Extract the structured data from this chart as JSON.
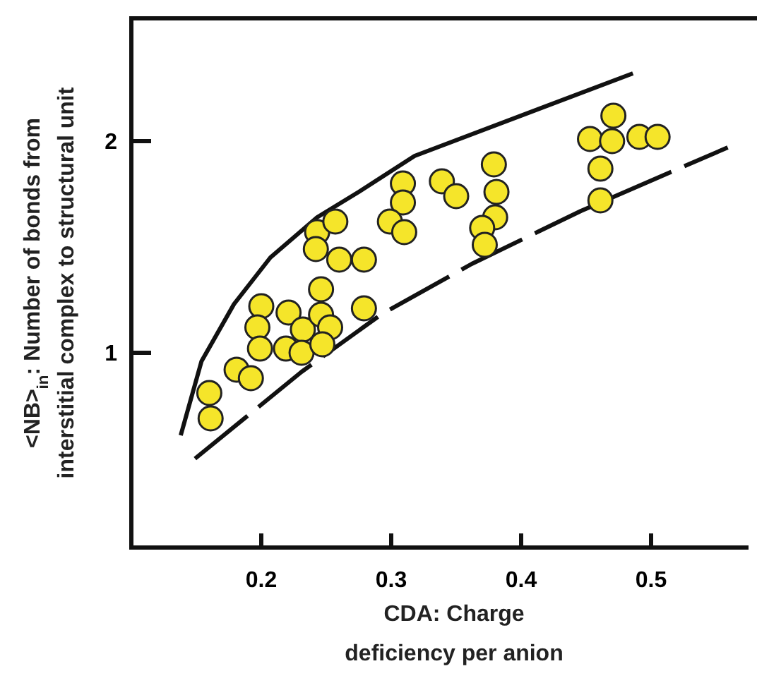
{
  "chart_data": {
    "type": "scatter",
    "xlabel": "CDA: Charge deficiency per anion",
    "ylabel": "<NB>$_{in}$: Number of bonds from interstitial complex to structural unit",
    "xlim": [
      0.1,
      0.575
    ],
    "ylim": [
      0.08,
      2.58
    ],
    "xticks": [
      0.2,
      0.3,
      0.4,
      0.5
    ],
    "yticks": [
      1,
      2
    ],
    "grid": false,
    "series": [
      {
        "color": "#f5e52a",
        "marker": "circle",
        "x": [
          0.16,
          0.161,
          0.181,
          0.192,
          0.2,
          0.197,
          0.199,
          0.221,
          0.219,
          0.232,
          0.231,
          0.246,
          0.246,
          0.253,
          0.247,
          0.243,
          0.242,
          0.257,
          0.26,
          0.279,
          0.279,
          0.309,
          0.309,
          0.299,
          0.31,
          0.339,
          0.35,
          0.379,
          0.381,
          0.38,
          0.37,
          0.372,
          0.471,
          0.453,
          0.47,
          0.491,
          0.505,
          0.461,
          0.461
        ],
        "values": [
          0.81,
          0.69,
          0.92,
          0.88,
          1.22,
          1.12,
          1.02,
          1.19,
          1.02,
          1.11,
          1.0,
          1.3,
          1.18,
          1.12,
          1.04,
          1.57,
          1.49,
          1.62,
          1.44,
          1.44,
          1.21,
          1.8,
          1.71,
          1.62,
          1.57,
          1.81,
          1.74,
          1.89,
          1.76,
          1.64,
          1.59,
          1.51,
          2.12,
          2.01,
          2.0,
          2.02,
          2.02,
          1.87,
          1.72
        ]
      },
      {
        "type": "line",
        "color": "#111111",
        "line_style": "solid",
        "x": [
          0.138,
          0.154,
          0.179,
          0.207,
          0.243,
          0.275,
          0.318,
          0.486
        ],
        "values": [
          0.61,
          0.96,
          1.23,
          1.45,
          1.64,
          1.76,
          1.93,
          2.32
        ]
      },
      {
        "type": "line",
        "color": "#111111",
        "line_style": "dashed",
        "x": [
          0.149,
          0.231,
          0.292,
          0.362,
          0.446,
          0.559
        ],
        "values": [
          0.5,
          0.91,
          1.18,
          1.42,
          1.67,
          1.97
        ]
      }
    ]
  }
}
